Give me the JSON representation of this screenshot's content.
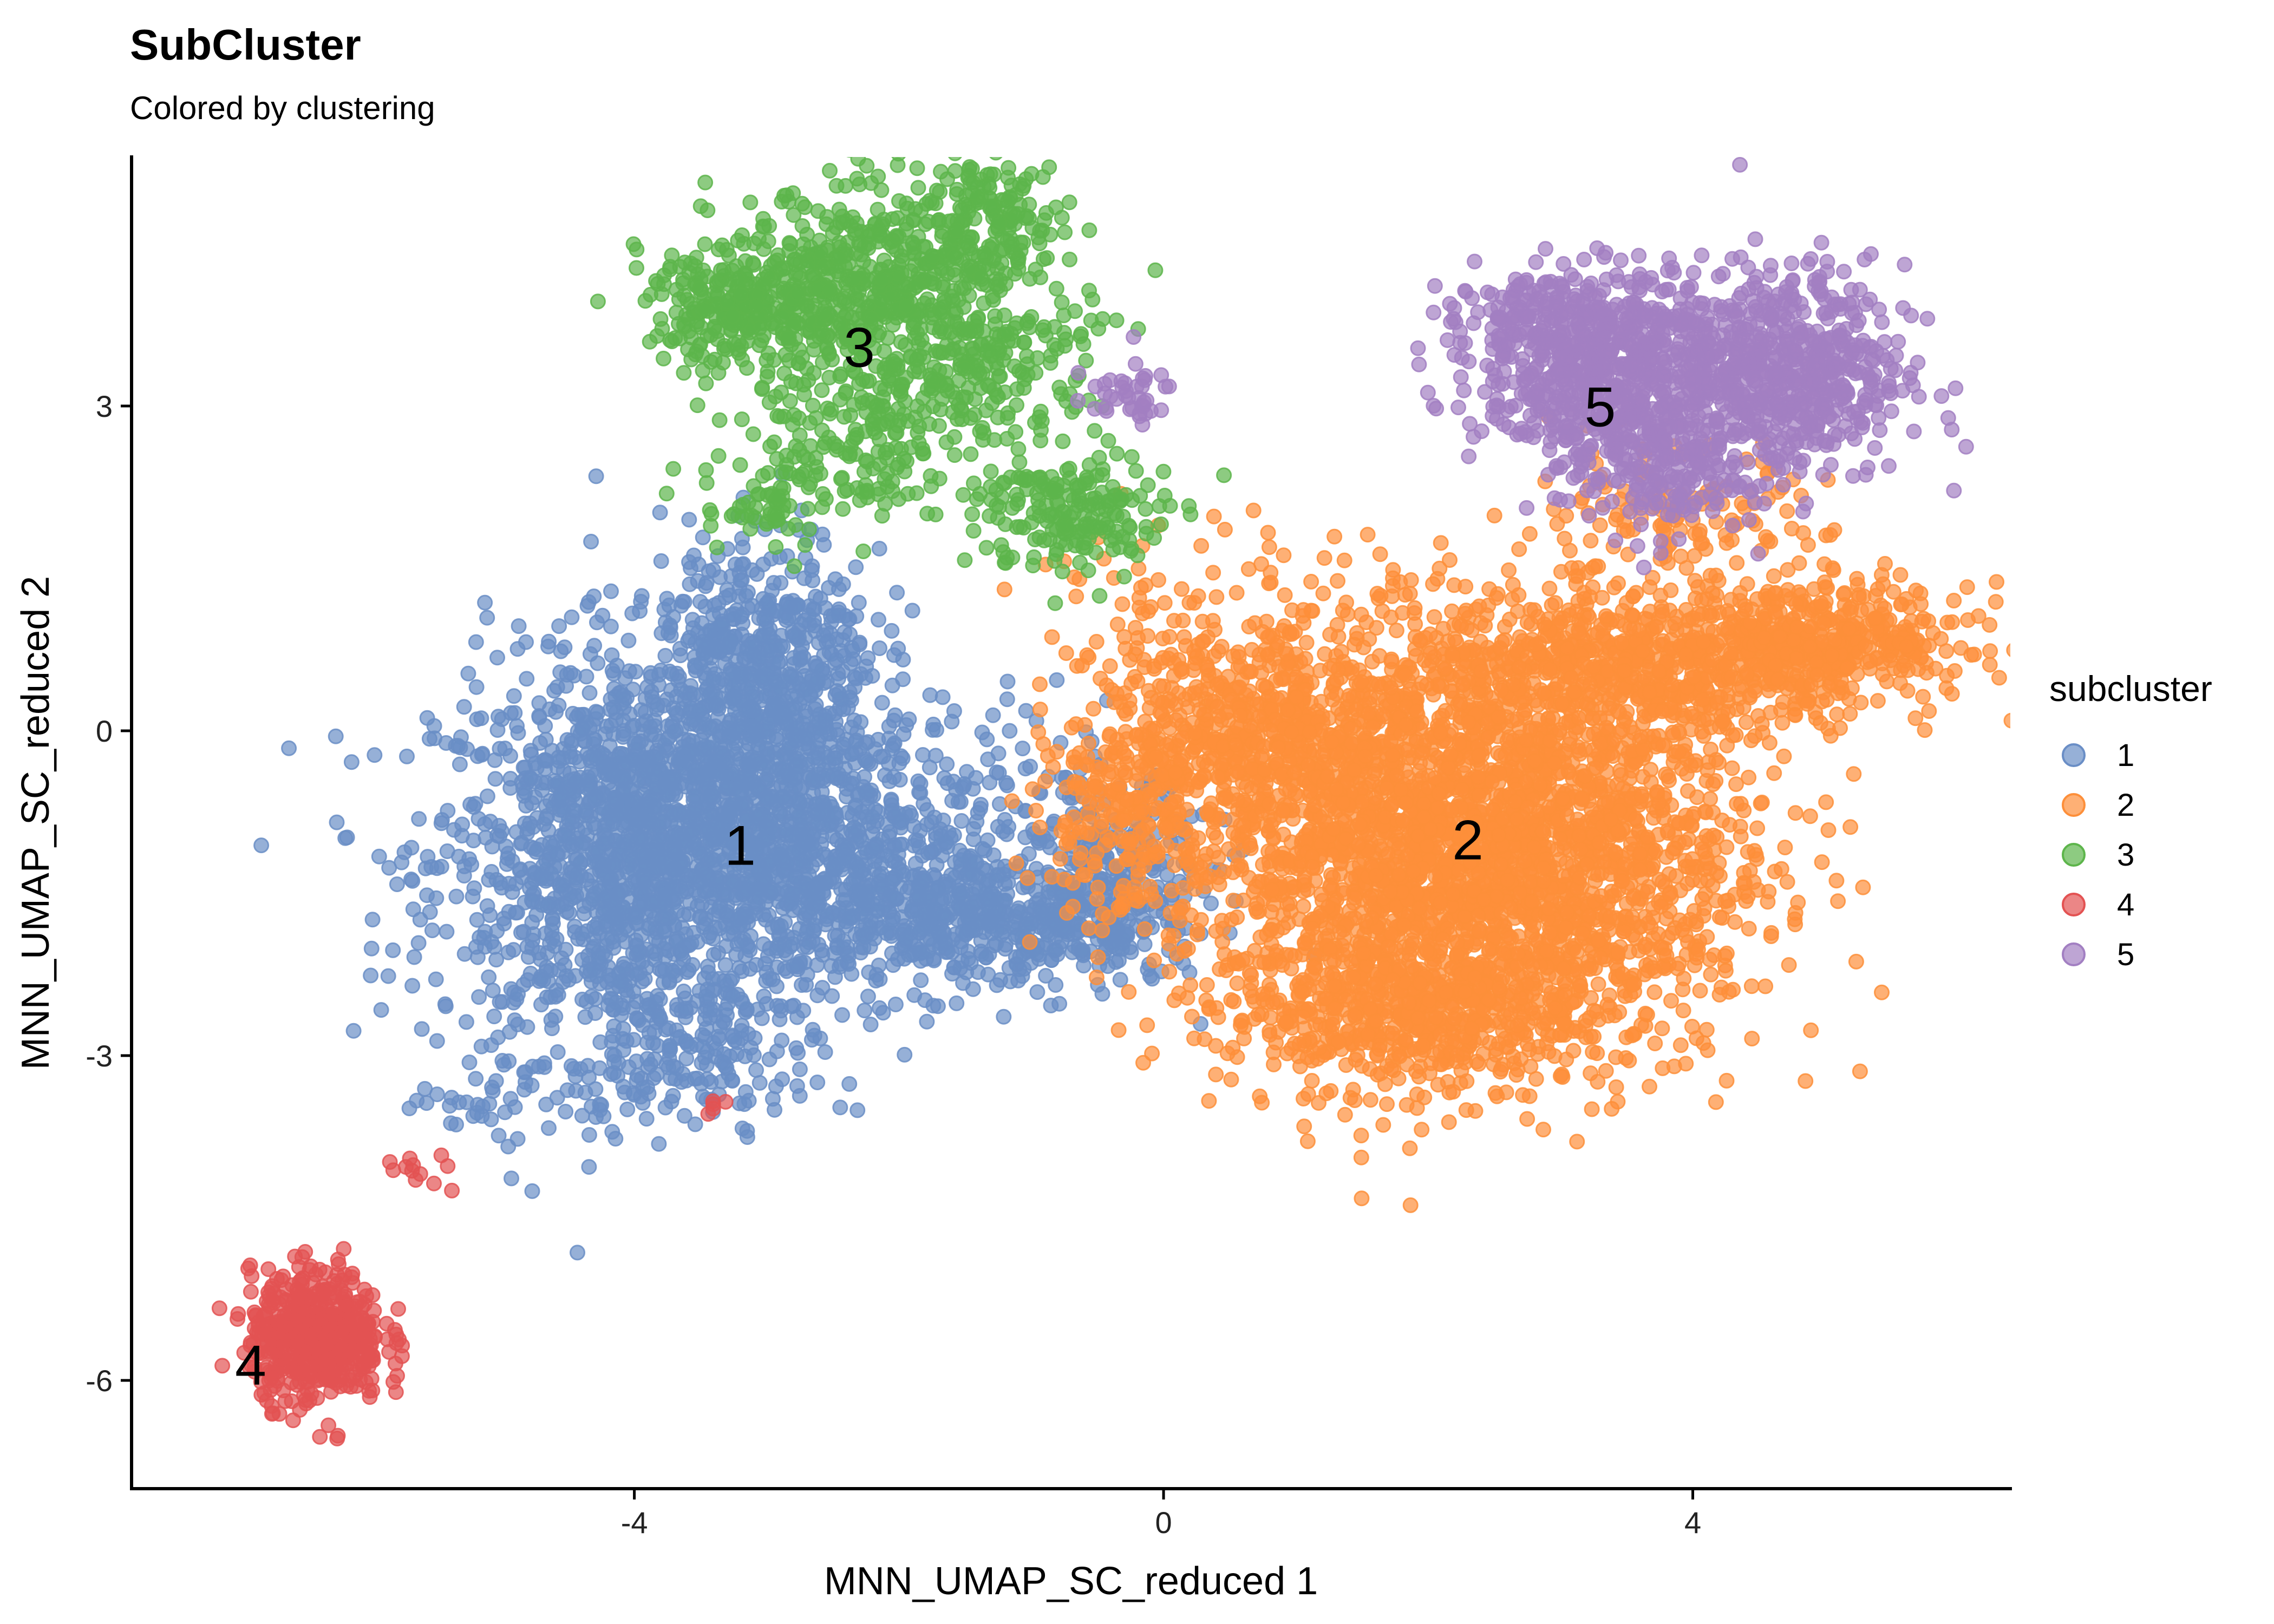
{
  "chart_data": {
    "type": "scatter",
    "title": "SubCluster",
    "subtitle": "Colored by clustering",
    "xlabel": "MNN_UMAP_SC_reduced 1",
    "ylabel": "MNN_UMAP_SC_reduced 2",
    "xlim": [
      -7.8,
      6.4
    ],
    "ylim": [
      -7.0,
      5.3
    ],
    "xticks": [
      -4,
      0,
      4
    ],
    "xtick_labels": [
      "-4",
      "0",
      "4"
    ],
    "yticks": [
      -6,
      -3,
      0,
      3
    ],
    "ytick_labels": [
      "-6",
      "-3",
      "0",
      "3"
    ],
    "grid": false,
    "legend": {
      "title": "subcluster",
      "placement": "right",
      "entries": [
        "1",
        "2",
        "3",
        "4",
        "5"
      ]
    },
    "colors": {
      "1": "#6A8EC6",
      "2": "#FD8F3A",
      "3": "#5DB54B",
      "4": "#E35252",
      "5": "#A27FC2"
    },
    "cluster_labels": [
      {
        "text": "1",
        "x": -3.2,
        "y": -1.1
      },
      {
        "text": "2",
        "x": 2.3,
        "y": -1.05
      },
      {
        "text": "3",
        "x": -2.3,
        "y": 3.5
      },
      {
        "text": "4",
        "x": -6.9,
        "y": -5.9
      },
      {
        "text": "5",
        "x": 3.3,
        "y": 2.95
      }
    ],
    "clusters": [
      {
        "name": "1",
        "blobs": [
          {
            "cx": -4.0,
            "cy": -1.2,
            "sx": 0.75,
            "sy": 0.9,
            "n": 1500
          },
          {
            "cx": -3.1,
            "cy": -0.5,
            "sx": 0.6,
            "sy": 0.8,
            "n": 900
          },
          {
            "cx": -3.0,
            "cy": 0.8,
            "sx": 0.4,
            "sy": 0.55,
            "n": 350
          },
          {
            "cx": -2.0,
            "cy": -1.6,
            "sx": 0.6,
            "sy": 0.4,
            "n": 450
          },
          {
            "cx": -1.0,
            "cy": -1.8,
            "sx": 0.5,
            "sy": 0.3,
            "n": 300
          },
          {
            "cx": -0.3,
            "cy": -1.3,
            "sx": 0.35,
            "sy": 0.4,
            "n": 200
          },
          {
            "cx": -3.5,
            "cy": -3.0,
            "sx": 0.5,
            "sy": 0.3,
            "n": 150
          },
          {
            "cx": -5.0,
            "cy": -3.4,
            "sx": 0.35,
            "sy": 0.25,
            "n": 40
          },
          {
            "cx": -1.2,
            "cy": -0.5,
            "sx": 0.5,
            "sy": 0.5,
            "n": 80
          }
        ]
      },
      {
        "name": "2",
        "blobs": [
          {
            "cx": 1.8,
            "cy": -1.0,
            "sx": 0.9,
            "sy": 1.0,
            "n": 1800
          },
          {
            "cx": 3.0,
            "cy": -1.2,
            "sx": 0.8,
            "sy": 0.9,
            "n": 1300
          },
          {
            "cx": 1.8,
            "cy": -2.6,
            "sx": 0.7,
            "sy": 0.35,
            "n": 450
          },
          {
            "cx": 3.6,
            "cy": 0.6,
            "sx": 0.9,
            "sy": 0.35,
            "n": 700
          },
          {
            "cx": 5.0,
            "cy": 0.85,
            "sx": 0.55,
            "sy": 0.25,
            "n": 400
          },
          {
            "cx": 0.7,
            "cy": 0.0,
            "sx": 0.6,
            "sy": 0.5,
            "n": 500
          },
          {
            "cx": -0.3,
            "cy": -0.8,
            "sx": 0.35,
            "sy": 0.5,
            "n": 200
          },
          {
            "cx": 3.8,
            "cy": 1.9,
            "sx": 0.6,
            "sy": 0.35,
            "n": 150
          },
          {
            "cx": 0.0,
            "cy": 1.0,
            "sx": 0.5,
            "sy": 0.4,
            "n": 60
          }
        ]
      },
      {
        "name": "3",
        "blobs": [
          {
            "cx": -2.2,
            "cy": 4.1,
            "sx": 0.6,
            "sy": 0.45,
            "n": 600
          },
          {
            "cx": -3.2,
            "cy": 3.9,
            "sx": 0.35,
            "sy": 0.25,
            "n": 220
          },
          {
            "cx": -1.3,
            "cy": 4.7,
            "sx": 0.3,
            "sy": 0.3,
            "n": 150
          },
          {
            "cx": -2.3,
            "cy": 2.8,
            "sx": 0.45,
            "sy": 0.4,
            "n": 200
          },
          {
            "cx": -0.7,
            "cy": 2.0,
            "sx": 0.35,
            "sy": 0.3,
            "n": 200
          },
          {
            "cx": -1.3,
            "cy": 3.4,
            "sx": 0.4,
            "sy": 0.35,
            "n": 160
          },
          {
            "cx": -3.0,
            "cy": 2.1,
            "sx": 0.25,
            "sy": 0.25,
            "n": 60
          }
        ]
      },
      {
        "name": "4",
        "blobs": [
          {
            "cx": -6.4,
            "cy": -5.6,
            "sx": 0.25,
            "sy": 0.3,
            "n": 550
          },
          {
            "cx": -5.6,
            "cy": -4.1,
            "sx": 0.15,
            "sy": 0.12,
            "n": 12
          },
          {
            "cx": -3.4,
            "cy": -3.5,
            "sx": 0.1,
            "sy": 0.08,
            "n": 5
          }
        ]
      },
      {
        "name": "5",
        "blobs": [
          {
            "cx": 3.4,
            "cy": 3.3,
            "sx": 0.5,
            "sy": 0.45,
            "n": 700
          },
          {
            "cx": 4.7,
            "cy": 3.3,
            "sx": 0.45,
            "sy": 0.5,
            "n": 600
          },
          {
            "cx": 2.9,
            "cy": 3.8,
            "sx": 0.35,
            "sy": 0.2,
            "n": 150
          },
          {
            "cx": 3.7,
            "cy": 2.4,
            "sx": 0.35,
            "sy": 0.3,
            "n": 150
          },
          {
            "cx": -0.3,
            "cy": 3.1,
            "sx": 0.2,
            "sy": 0.15,
            "n": 40
          }
        ]
      }
    ]
  }
}
